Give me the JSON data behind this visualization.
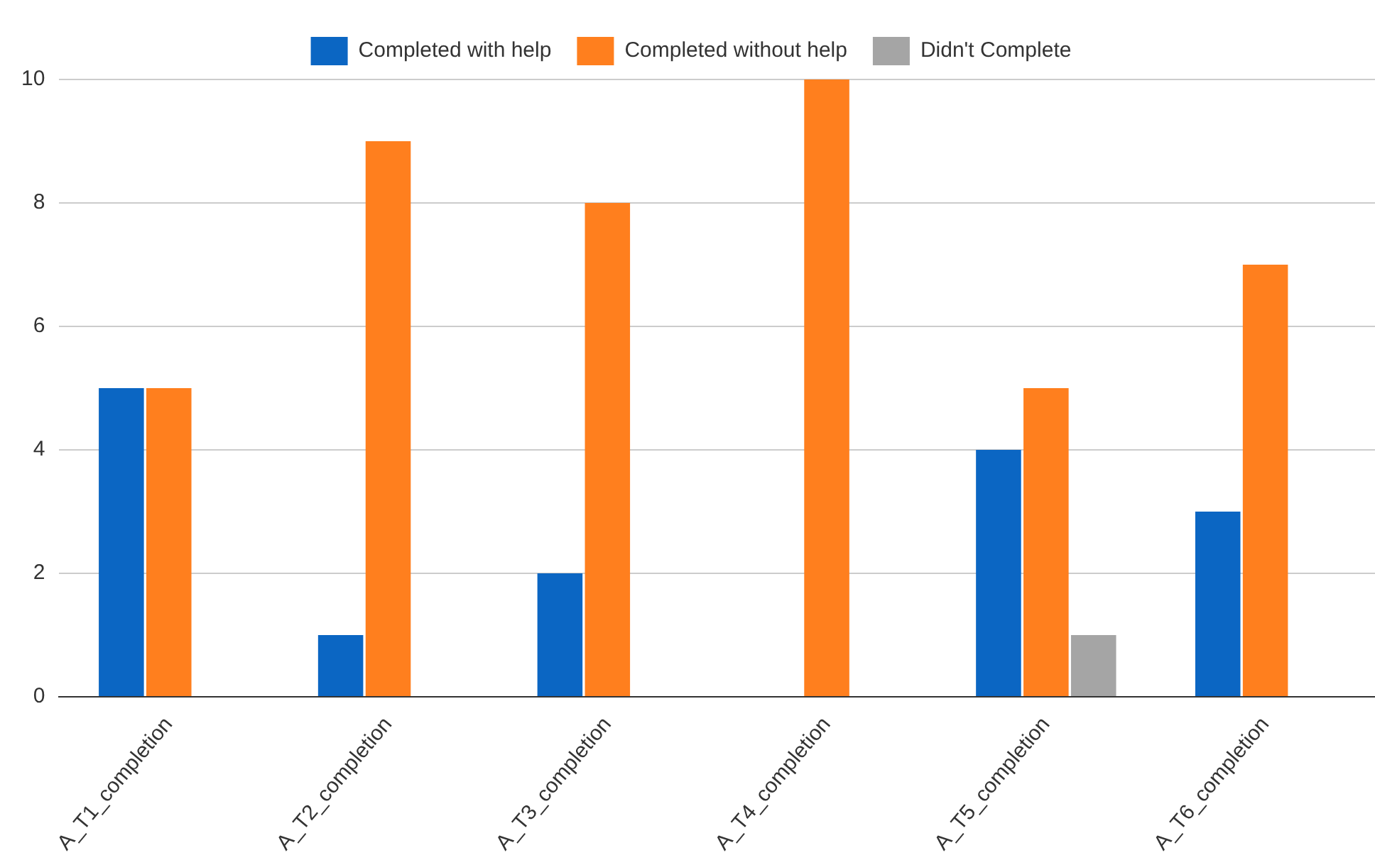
{
  "chart_data": {
    "type": "bar",
    "categories": [
      "A_T1_completion",
      "A_T2_completion",
      "A_T3_completion",
      "A_T4_completion",
      "A_T5_completion",
      "A_T6_completion"
    ],
    "series": [
      {
        "name": "Completed with help",
        "color": "#0b66c3",
        "values": [
          5,
          1,
          2,
          0,
          4,
          3
        ]
      },
      {
        "name": "Completed without help",
        "color": "#ff7f1e",
        "values": [
          5,
          9,
          8,
          10,
          5,
          7
        ]
      },
      {
        "name": "Didn't Complete",
        "color": "#a5a5a5",
        "values": [
          0,
          0,
          0,
          0,
          1,
          0
        ]
      }
    ],
    "ylim": [
      0,
      10
    ],
    "yticks": [
      0,
      2,
      4,
      6,
      8,
      10
    ],
    "grid": "y",
    "legend": "top"
  }
}
